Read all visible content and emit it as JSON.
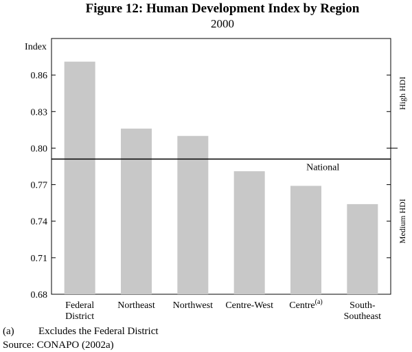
{
  "chart_data": {
    "type": "bar",
    "title": "Figure 12: Human Development Index by Region",
    "subtitle": "2000",
    "ylabel": "Index",
    "ylim": [
      0.68,
      0.89
    ],
    "yticks": [
      "0.86",
      "0.83",
      "0.80",
      "0.77",
      "0.74",
      "0.71",
      "0.68"
    ],
    "categories": [
      {
        "line1": "Federal",
        "line2": "District",
        "sup": ""
      },
      {
        "line1": "Northeast",
        "line2": "",
        "sup": ""
      },
      {
        "line1": "Northwest",
        "line2": "",
        "sup": ""
      },
      {
        "line1": "Centre-West",
        "line2": "",
        "sup": ""
      },
      {
        "line1": "Centre",
        "line2": "",
        "sup": "(a)"
      },
      {
        "line1": "South-",
        "line2": "Southeast",
        "sup": ""
      }
    ],
    "values": [
      0.871,
      0.816,
      0.81,
      0.781,
      0.769,
      0.754
    ],
    "reference_line": {
      "label": "National",
      "value": 0.791
    },
    "bands": [
      {
        "label": "High HDI",
        "from": 0.8,
        "to": 0.89
      },
      {
        "label": "Medium HDI",
        "from": 0.68,
        "to": 0.8
      }
    ],
    "bar_color": "#c8c8c8"
  },
  "footnote": {
    "marker": "(a)",
    "text": "Excludes the Federal District"
  },
  "source": "Source: CONAPO (2002a)"
}
